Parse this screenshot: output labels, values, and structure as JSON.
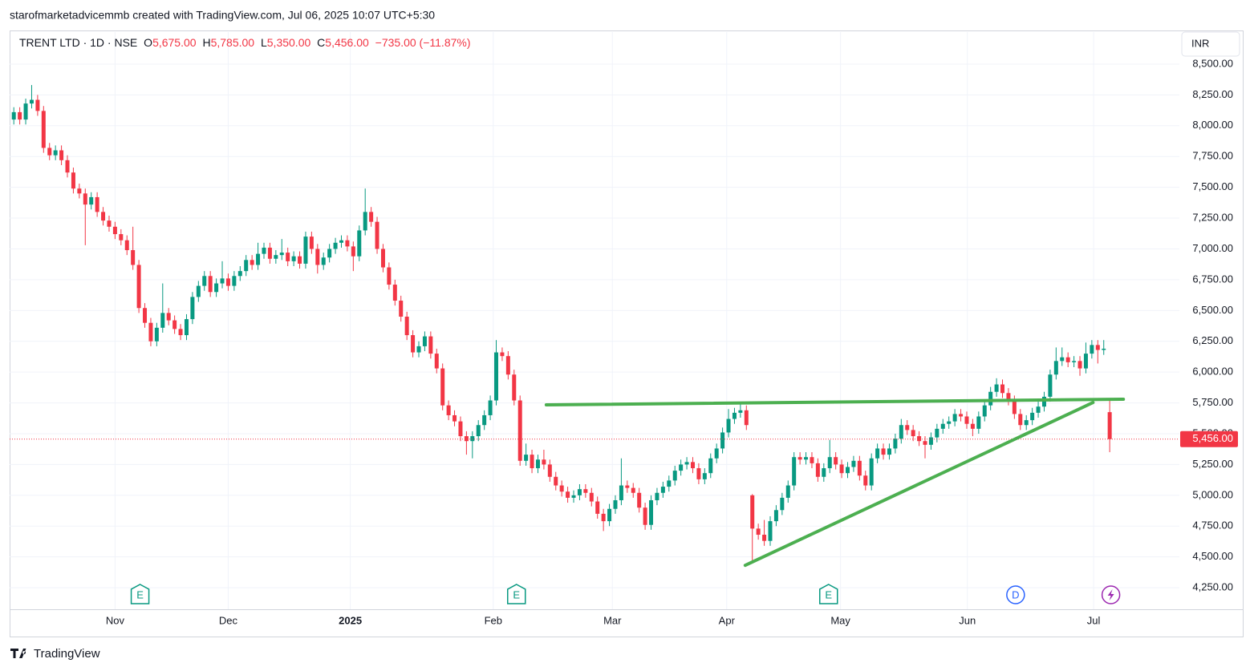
{
  "header": "starofmarketadvicemmb created with TradingView.com, Jul 06, 2025 10:07 UTC+5:30",
  "footer": "TradingView",
  "chart_data": {
    "type": "candlestick",
    "legend": {
      "symbol": "TRENT LTD · 1D · NSE",
      "fields": [
        {
          "label": "O",
          "value": "5,675.00"
        },
        {
          "label": "H",
          "value": "5,785.00"
        },
        {
          "label": "L",
          "value": "5,350.00"
        },
        {
          "label": "C",
          "value": "5,456.00"
        }
      ],
      "change": "−735.00 (−11.87%)"
    },
    "currency": "INR",
    "up_color": "#089981",
    "down_color": "#f23645",
    "last_price_label": "5,456.00",
    "grid": true,
    "xlim": [
      -0.7,
      195.7
    ],
    "xticks": [
      {
        "value": 17,
        "label": "Nov"
      },
      {
        "value": 36,
        "label": "Dec"
      },
      {
        "value": 56.5,
        "label": "2025"
      },
      {
        "value": 80.5,
        "label": "Feb"
      },
      {
        "value": 100.5,
        "label": "Mar"
      },
      {
        "value": 119.7,
        "label": "Apr"
      },
      {
        "value": 138.8,
        "label": "May"
      },
      {
        "value": 160.1,
        "label": "Jun"
      },
      {
        "value": 181.3,
        "label": "Jul"
      }
    ],
    "ylim": [
      4075,
      8760
    ],
    "yticks": [
      {
        "value": 4250,
        "label": "4,250.00"
      },
      {
        "value": 4500,
        "label": "4,500.00"
      },
      {
        "value": 4750,
        "label": "4,750.00"
      },
      {
        "value": 5000,
        "label": "5,000.00"
      },
      {
        "value": 5250,
        "label": "5,250.00"
      },
      {
        "value": 5500,
        "label": "5,500.00"
      },
      {
        "value": 5750,
        "label": "5,750.00"
      },
      {
        "value": 6000,
        "label": "6,000.00"
      },
      {
        "value": 6250,
        "label": "6,250.00"
      },
      {
        "value": 6500,
        "label": "6,500.00"
      },
      {
        "value": 6750,
        "label": "6,750.00"
      },
      {
        "value": 7000,
        "label": "7,000.00"
      },
      {
        "value": 7250,
        "label": "7,250.00"
      },
      {
        "value": 7500,
        "label": "7,500.00"
      },
      {
        "value": 7750,
        "label": "7,750.00"
      },
      {
        "value": 8000,
        "label": "8,000.00"
      },
      {
        "value": 8250,
        "label": "8,250.00"
      },
      {
        "value": 8500,
        "label": "8,500.00"
      }
    ],
    "drawings": [
      {
        "color": "#4caf50",
        "from": [
          89.4,
          5734
        ],
        "to": [
          186.3,
          5780
        ]
      },
      {
        "color": "#4caf50",
        "from": [
          122.8,
          4432
        ],
        "to": [
          181.2,
          5753
        ]
      }
    ],
    "events": [
      {
        "x": 21.2,
        "label": "E"
      },
      {
        "x": 84.4,
        "label": "E"
      },
      {
        "x": 136.8,
        "label": "E"
      },
      {
        "x": 168.2,
        "label": "D"
      },
      {
        "x": 184.2
      }
    ],
    "candles": [
      [
        8050,
        8150,
        8010,
        8110
      ],
      [
        8110,
        8150,
        8010,
        8050
      ],
      [
        8050,
        8220,
        8010,
        8180
      ],
      [
        8180,
        8330,
        8140,
        8210
      ],
      [
        8210,
        8250,
        8080,
        8120
      ],
      [
        8120,
        8160,
        7780,
        7820
      ],
      [
        7820,
        7860,
        7720,
        7760
      ],
      [
        7760,
        7840,
        7720,
        7800
      ],
      [
        7800,
        7840,
        7680,
        7720
      ],
      [
        7720,
        7760,
        7580,
        7620
      ],
      [
        7620,
        7660,
        7450,
        7490
      ],
      [
        7490,
        7530,
        7410,
        7450
      ],
      [
        7450,
        7490,
        7030,
        7360
      ],
      [
        7360,
        7460,
        7320,
        7420
      ],
      [
        7420,
        7460,
        7260,
        7300
      ],
      [
        7300,
        7340,
        7190,
        7230
      ],
      [
        7230,
        7270,
        7140,
        7180
      ],
      [
        7180,
        7220,
        7080,
        7120
      ],
      [
        7120,
        7160,
        7030,
        7070
      ],
      [
        7070,
        7110,
        6950,
        6990
      ],
      [
        6990,
        7180,
        6830,
        6870
      ],
      [
        6870,
        6910,
        6480,
        6520
      ],
      [
        6520,
        6560,
        6360,
        6400
      ],
      [
        6400,
        6440,
        6210,
        6250
      ],
      [
        6250,
        6400,
        6210,
        6360
      ],
      [
        6360,
        6720,
        6320,
        6480
      ],
      [
        6480,
        6520,
        6380,
        6420
      ],
      [
        6420,
        6460,
        6310,
        6350
      ],
      [
        6350,
        6390,
        6260,
        6300
      ],
      [
        6300,
        6470,
        6260,
        6430
      ],
      [
        6430,
        6650,
        6390,
        6610
      ],
      [
        6610,
        6740,
        6570,
        6700
      ],
      [
        6700,
        6820,
        6660,
        6780
      ],
      [
        6780,
        6820,
        6610,
        6650
      ],
      [
        6650,
        6760,
        6610,
        6720
      ],
      [
        6720,
        6900,
        6680,
        6760
      ],
      [
        6760,
        6800,
        6660,
        6700
      ],
      [
        6700,
        6820,
        6660,
        6780
      ],
      [
        6780,
        6860,
        6740,
        6820
      ],
      [
        6820,
        6950,
        6780,
        6910
      ],
      [
        6910,
        6950,
        6830,
        6870
      ],
      [
        6870,
        7050,
        6830,
        6960
      ],
      [
        6960,
        7050,
        6920,
        7010
      ],
      [
        7010,
        7050,
        6880,
        6920
      ],
      [
        6920,
        6990,
        6880,
        6950
      ],
      [
        6950,
        7080,
        6910,
        6970
      ],
      [
        6970,
        7010,
        6860,
        6900
      ],
      [
        6900,
        6980,
        6860,
        6940
      ],
      [
        6940,
        6980,
        6840,
        6880
      ],
      [
        6880,
        7140,
        6840,
        7100
      ],
      [
        7100,
        7140,
        6960,
        7000
      ],
      [
        7000,
        7040,
        6800,
        6870
      ],
      [
        6870,
        6970,
        6830,
        6930
      ],
      [
        6930,
        7040,
        6890,
        7000
      ],
      [
        7000,
        7090,
        6960,
        7050
      ],
      [
        7050,
        7110,
        7010,
        7070
      ],
      [
        7070,
        7110,
        6980,
        7020
      ],
      [
        7020,
        7060,
        6820,
        6940
      ],
      [
        6940,
        7190,
        6900,
        7150
      ],
      [
        7150,
        7490,
        7110,
        7300
      ],
      [
        7300,
        7340,
        7180,
        7220
      ],
      [
        7220,
        7260,
        6960,
        7000
      ],
      [
        7000,
        7040,
        6810,
        6850
      ],
      [
        6850,
        6890,
        6670,
        6710
      ],
      [
        6710,
        6750,
        6540,
        6580
      ],
      [
        6580,
        6620,
        6410,
        6450
      ],
      [
        6450,
        6490,
        6260,
        6300
      ],
      [
        6300,
        6340,
        6120,
        6160
      ],
      [
        6160,
        6250,
        6120,
        6210
      ],
      [
        6210,
        6330,
        6170,
        6290
      ],
      [
        6290,
        6330,
        6110,
        6150
      ],
      [
        6150,
        6190,
        5990,
        6030
      ],
      [
        6030,
        6070,
        5690,
        5730
      ],
      [
        5730,
        5770,
        5610,
        5650
      ],
      [
        5650,
        5690,
        5560,
        5600
      ],
      [
        5600,
        5640,
        5440,
        5480
      ],
      [
        5480,
        5520,
        5330,
        5440
      ],
      [
        5440,
        5520,
        5300,
        5480
      ],
      [
        5480,
        5610,
        5440,
        5570
      ],
      [
        5570,
        5690,
        5530,
        5650
      ],
      [
        5650,
        5810,
        5610,
        5770
      ],
      [
        5770,
        6260,
        5730,
        6160
      ],
      [
        6160,
        6200,
        6090,
        6130
      ],
      [
        6130,
        6170,
        5940,
        5980
      ],
      [
        5980,
        6020,
        5730,
        5770
      ],
      [
        5770,
        5810,
        5240,
        5280
      ],
      [
        5280,
        5420,
        5240,
        5330
      ],
      [
        5330,
        5370,
        5180,
        5220
      ],
      [
        5220,
        5330,
        5180,
        5290
      ],
      [
        5290,
        5370,
        5210,
        5250
      ],
      [
        5250,
        5290,
        5110,
        5150
      ],
      [
        5150,
        5190,
        5040,
        5080
      ],
      [
        5080,
        5120,
        4990,
        5030
      ],
      [
        5030,
        5070,
        4940,
        4980
      ],
      [
        4980,
        5040,
        4940,
        5000
      ],
      [
        5000,
        5090,
        4960,
        5050
      ],
      [
        5050,
        5090,
        4980,
        5020
      ],
      [
        5020,
        5060,
        4910,
        4950
      ],
      [
        4950,
        4990,
        4810,
        4850
      ],
      [
        4850,
        4890,
        4710,
        4790
      ],
      [
        4790,
        4930,
        4750,
        4890
      ],
      [
        4890,
        5000,
        4850,
        4960
      ],
      [
        4960,
        5300,
        4920,
        5080
      ],
      [
        5080,
        5120,
        5020,
        5060
      ],
      [
        5060,
        5100,
        4980,
        5020
      ],
      [
        5020,
        5060,
        4860,
        4900
      ],
      [
        4900,
        4940,
        4720,
        4760
      ],
      [
        4760,
        5000,
        4720,
        4960
      ],
      [
        4960,
        5060,
        4920,
        5020
      ],
      [
        5020,
        5110,
        4980,
        5070
      ],
      [
        5070,
        5160,
        5030,
        5120
      ],
      [
        5120,
        5240,
        5080,
        5200
      ],
      [
        5200,
        5290,
        5160,
        5250
      ],
      [
        5250,
        5310,
        5210,
        5270
      ],
      [
        5270,
        5310,
        5180,
        5220
      ],
      [
        5220,
        5260,
        5090,
        5130
      ],
      [
        5130,
        5220,
        5090,
        5180
      ],
      [
        5180,
        5340,
        5140,
        5300
      ],
      [
        5300,
        5420,
        5260,
        5380
      ],
      [
        5380,
        5550,
        5340,
        5510
      ],
      [
        5510,
        5700,
        5470,
        5620
      ],
      [
        5620,
        5710,
        5580,
        5670
      ],
      [
        5670,
        5760,
        5630,
        5690
      ],
      [
        5690,
        5730,
        5530,
        5570
      ],
      [
        5000,
        5010,
        4470,
        4730
      ],
      [
        4730,
        4770,
        4640,
        4680
      ],
      [
        4680,
        4800,
        4590,
        4630
      ],
      [
        4630,
        4830,
        4590,
        4790
      ],
      [
        4790,
        4920,
        4750,
        4880
      ],
      [
        4880,
        5020,
        4840,
        4980
      ],
      [
        4980,
        5120,
        4940,
        5080
      ],
      [
        5080,
        5350,
        5040,
        5310
      ],
      [
        5310,
        5350,
        5250,
        5290
      ],
      [
        5290,
        5350,
        5250,
        5310
      ],
      [
        5310,
        5350,
        5220,
        5260
      ],
      [
        5260,
        5300,
        5110,
        5150
      ],
      [
        5150,
        5260,
        5110,
        5220
      ],
      [
        5220,
        5450,
        5180,
        5310
      ],
      [
        5310,
        5350,
        5210,
        5250
      ],
      [
        5250,
        5290,
        5140,
        5180
      ],
      [
        5180,
        5270,
        5140,
        5230
      ],
      [
        5230,
        5320,
        5190,
        5280
      ],
      [
        5280,
        5320,
        5120,
        5160
      ],
      [
        5160,
        5200,
        5040,
        5080
      ],
      [
        5080,
        5340,
        5040,
        5300
      ],
      [
        5300,
        5420,
        5260,
        5380
      ],
      [
        5380,
        5420,
        5290,
        5330
      ],
      [
        5330,
        5420,
        5290,
        5380
      ],
      [
        5380,
        5500,
        5340,
        5460
      ],
      [
        5460,
        5620,
        5420,
        5570
      ],
      [
        5570,
        5610,
        5490,
        5530
      ],
      [
        5530,
        5570,
        5440,
        5480
      ],
      [
        5480,
        5520,
        5400,
        5440
      ],
      [
        5440,
        5480,
        5300,
        5410
      ],
      [
        5410,
        5510,
        5370,
        5470
      ],
      [
        5470,
        5580,
        5430,
        5540
      ],
      [
        5540,
        5620,
        5500,
        5580
      ],
      [
        5580,
        5640,
        5540,
        5600
      ],
      [
        5600,
        5700,
        5560,
        5660
      ],
      [
        5660,
        5700,
        5600,
        5640
      ],
      [
        5640,
        5680,
        5540,
        5580
      ],
      [
        5580,
        5620,
        5480,
        5540
      ],
      [
        5540,
        5680,
        5500,
        5640
      ],
      [
        5640,
        5770,
        5600,
        5730
      ],
      [
        5730,
        5880,
        5690,
        5840
      ],
      [
        5840,
        5950,
        5800,
        5900
      ],
      [
        5900,
        5940,
        5790,
        5830
      ],
      [
        5830,
        5870,
        5730,
        5770
      ],
      [
        5770,
        5810,
        5620,
        5660
      ],
      [
        5660,
        5700,
        5530,
        5570
      ],
      [
        5570,
        5650,
        5530,
        5610
      ],
      [
        5610,
        5710,
        5570,
        5670
      ],
      [
        5670,
        5760,
        5630,
        5720
      ],
      [
        5720,
        5840,
        5680,
        5800
      ],
      [
        5800,
        6020,
        5760,
        5980
      ],
      [
        5980,
        6200,
        5940,
        6090
      ],
      [
        6090,
        6200,
        6050,
        6120
      ],
      [
        6120,
        6160,
        6040,
        6080
      ],
      [
        6080,
        6130,
        6040,
        6090
      ],
      [
        6090,
        6130,
        5970,
        6030
      ],
      [
        6030,
        6240,
        5990,
        6150
      ],
      [
        6150,
        6260,
        6110,
        6220
      ],
      [
        6220,
        6260,
        6070,
        6180
      ],
      [
        6180,
        6260,
        6140,
        6190
      ],
      [
        5675,
        5785,
        5350,
        5456
      ]
    ]
  }
}
